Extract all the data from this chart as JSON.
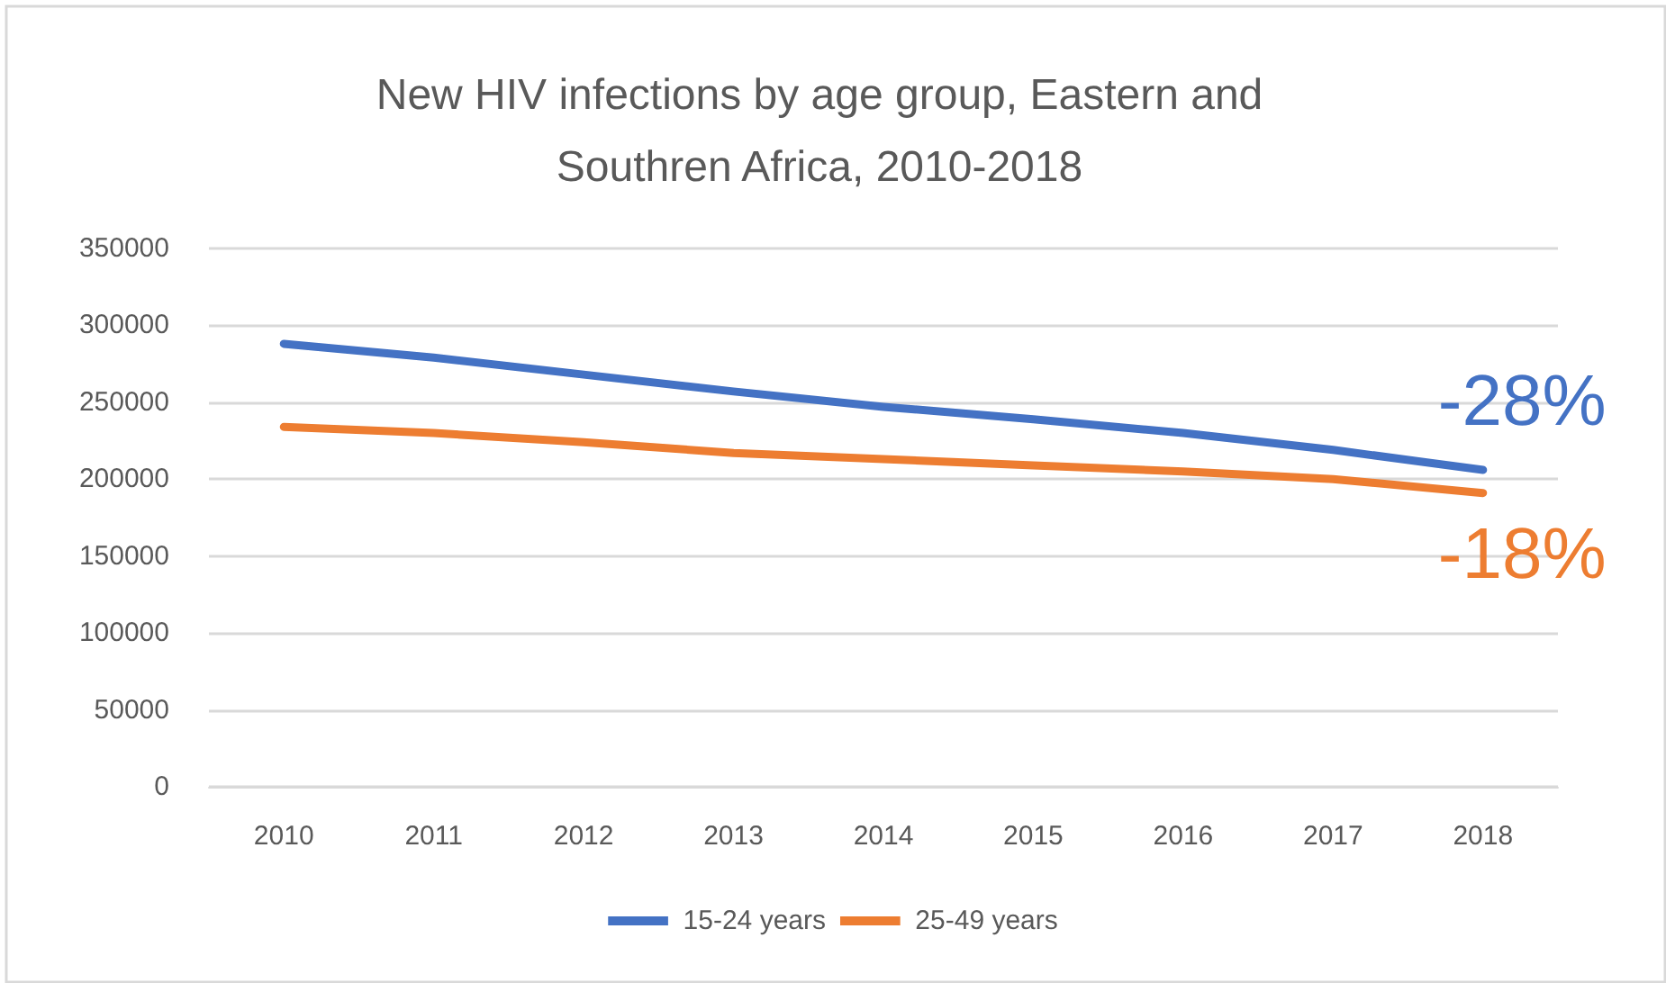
{
  "chart_data": {
    "type": "line",
    "title": "New HIV infections by age group, Eastern and\nSouthren Africa, 2010-2018",
    "categories": [
      "2010",
      "2011",
      "2012",
      "2013",
      "2014",
      "2015",
      "2016",
      "2017",
      "2018"
    ],
    "series": [
      {
        "name": "15-24 years",
        "color": "#4472c4",
        "values": [
          288000,
          279000,
          268000,
          257000,
          247000,
          239000,
          230000,
          219000,
          206000
        ]
      },
      {
        "name": "25-49 years",
        "color": "#ed7d31",
        "values": [
          234000,
          230000,
          224000,
          217000,
          213000,
          209000,
          205000,
          200000,
          191000
        ]
      }
    ],
    "ylim": [
      0,
      350000
    ],
    "yticks": [
      0,
      50000,
      100000,
      150000,
      200000,
      250000,
      300000,
      350000
    ],
    "grid": "y",
    "legend": "bottom",
    "marker": "none",
    "line_style": "solid",
    "annotations": [
      {
        "text": "-28%",
        "x": "2018",
        "y": 206000
      },
      {
        "text": "-18%",
        "x": "2018",
        "y": 191000
      }
    ]
  }
}
